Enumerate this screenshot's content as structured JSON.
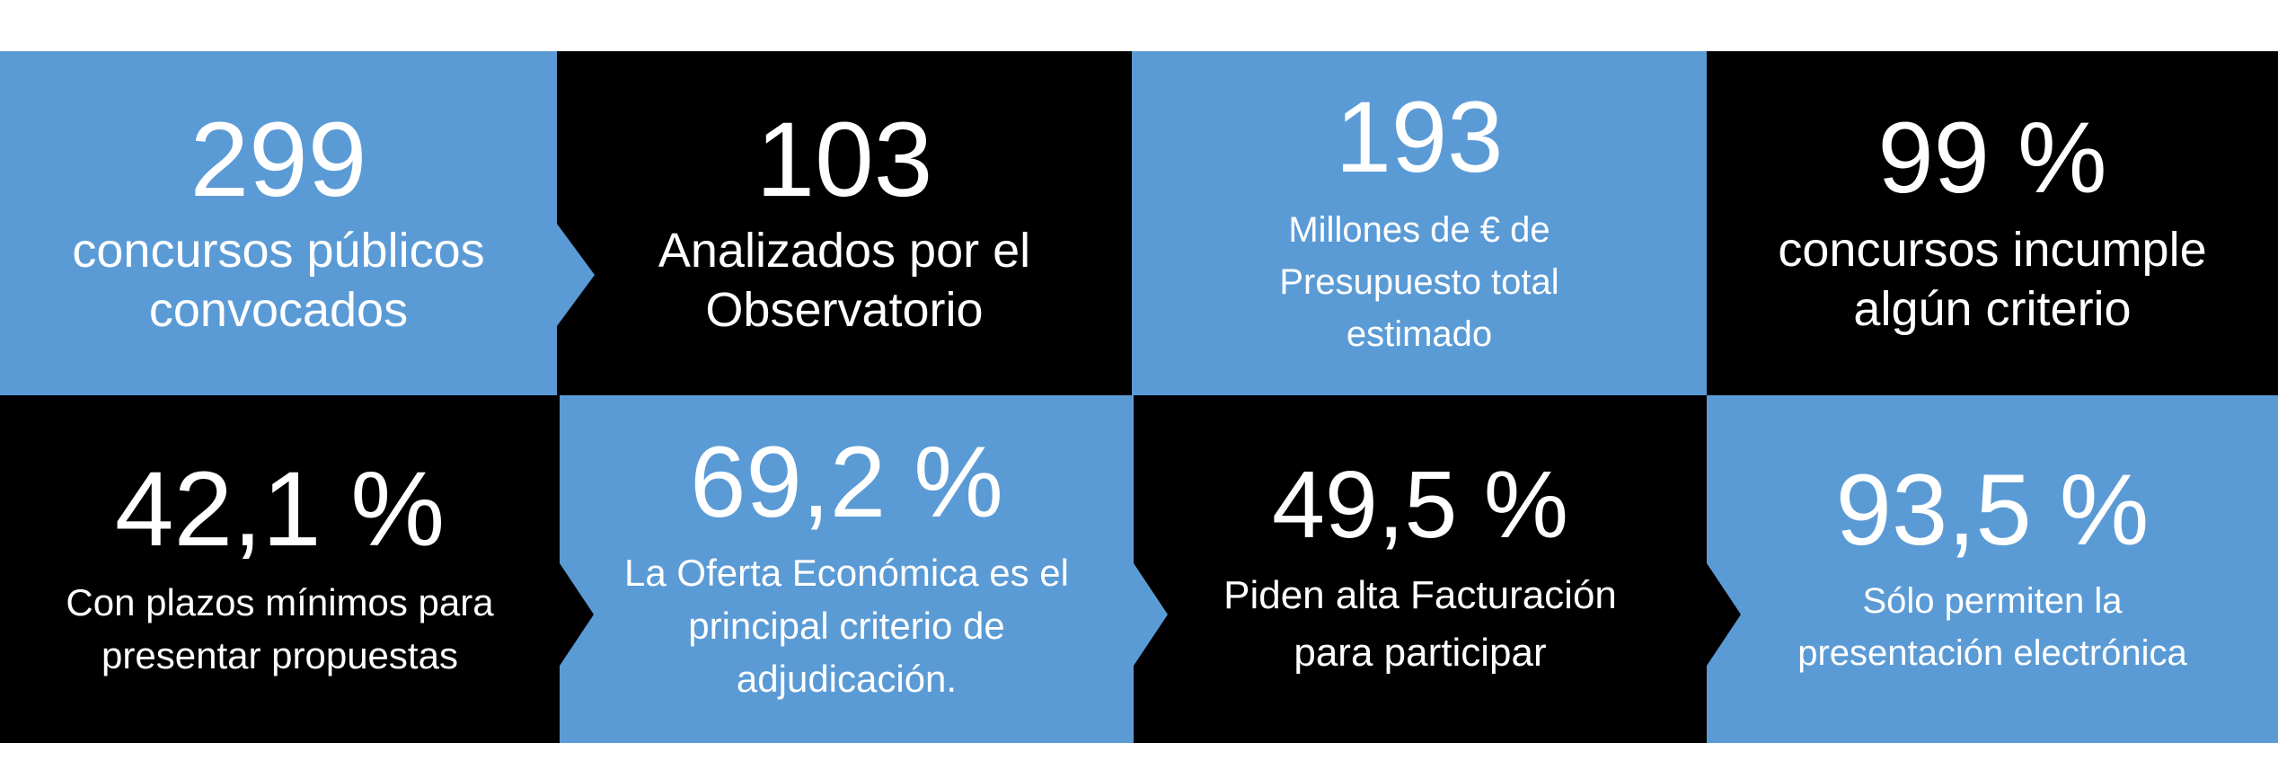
{
  "colors": {
    "blue": "#5b9bd5",
    "black": "#000000",
    "text": "#ffffff"
  },
  "stats": [
    {
      "value": "299",
      "line1": "concursos públicos",
      "line2": "convocados",
      "line3": "",
      "bg": "blue"
    },
    {
      "value": "103",
      "line1": "Analizados por el",
      "line2": "Observatorio",
      "line3": "",
      "bg": "black"
    },
    {
      "value": "193",
      "line1": "Millones de € de",
      "line2": "Presupuesto total",
      "line3": "estimado",
      "bg": "blue"
    },
    {
      "value": "99 %",
      "line1": "concursos incumple",
      "line2": "algún criterio",
      "line3": "",
      "bg": "black"
    },
    {
      "value": "42,1 %",
      "line1": "Con plazos mínimos para",
      "line2": "presentar propuestas",
      "line3": "",
      "bg": "black"
    },
    {
      "value": "69,2 %",
      "line1": "La Oferta Económica es el",
      "line2": "principal criterio de",
      "line3": "adjudicación.",
      "bg": "blue"
    },
    {
      "value": "49,5 %",
      "line1": "Piden alta Facturación",
      "line2": "para participar",
      "line3": "",
      "bg": "black"
    },
    {
      "value": "93,5 %",
      "line1": "Sólo permiten la",
      "line2": "presentación electrónica",
      "line3": "",
      "bg": "blue"
    }
  ]
}
